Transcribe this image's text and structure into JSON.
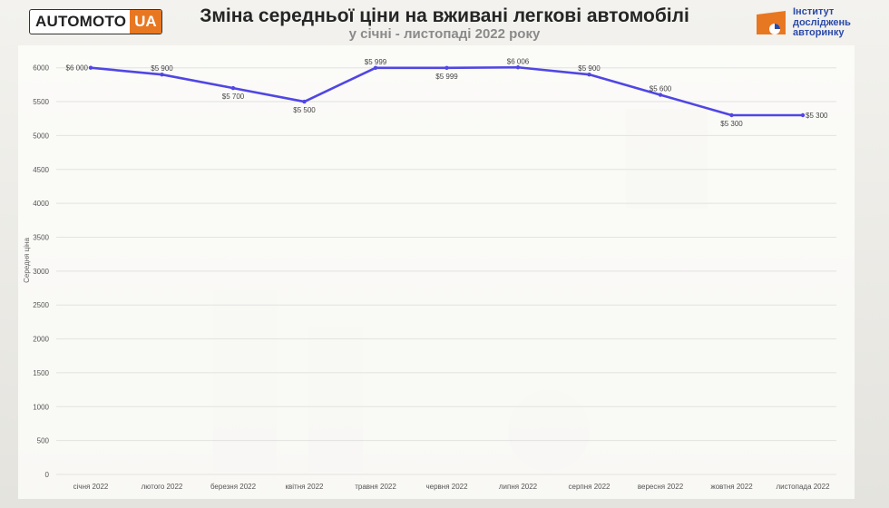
{
  "header": {
    "logo_left_a": "AUTOMOTO",
    "logo_left_b": "UA",
    "title": "Зміна середньої ціни на вживані легкові автомобілі",
    "subtitle": "у січні - листопаді 2022 року",
    "logo_right_lines": [
      "Інститут",
      "досліджень",
      "авторинку"
    ]
  },
  "colors": {
    "line": "#5046e4",
    "brand_orange": "#e87722",
    "brand_blue": "#2b4aa8"
  },
  "chart_data": {
    "type": "line",
    "title": "Зміна середньої ціни на вживані легкові автомобілі",
    "subtitle": "у січні - листопаді 2022 року",
    "xlabel": "",
    "ylabel": "Середня ціна",
    "ylim": [
      0,
      6000
    ],
    "yticks": [
      "0",
      "500",
      "1000",
      "1500",
      "2000",
      "2500",
      "3000",
      "3500",
      "4000",
      "4500",
      "5000",
      "5500",
      "6000"
    ],
    "ytick_values": [
      0,
      500,
      1000,
      1500,
      2000,
      2500,
      3000,
      3500,
      4000,
      4500,
      5000,
      5500,
      6000
    ],
    "grid": true,
    "legend": "none",
    "categories": [
      "січня 2022",
      "лютого 2022",
      "березня 2022",
      "квітня 2022",
      "травня 2022",
      "червня 2022",
      "липня 2022",
      "серпня 2022",
      "вересня 2022",
      "жовтня 2022",
      "листопада 2022"
    ],
    "series": [
      {
        "values": [
          6000,
          5900,
          5700,
          5500,
          5999,
          5999,
          6006,
          5900,
          5600,
          5300,
          5300
        ],
        "labels": [
          "$6 000",
          "$5 900",
          "$5 700",
          "$5 500",
          "$5 999",
          "$5 999",
          "$6 006",
          "$5 900",
          "$5 600",
          "$5 300",
          "$5 300"
        ]
      }
    ]
  }
}
